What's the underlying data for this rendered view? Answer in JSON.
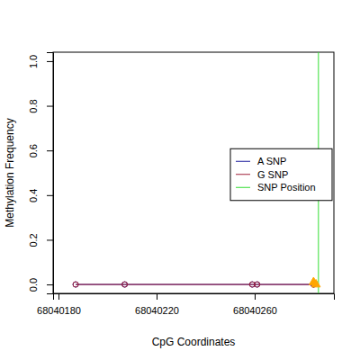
{
  "chart_data": {
    "type": "line",
    "x_label": "CpG Coordinates",
    "y_label": "Methylation Frequency",
    "xlim": [
      68040177.8,
      68040292.3
    ],
    "ylim": [
      -0.04,
      1.04
    ],
    "xticks": [
      68040180,
      68040220,
      68040260
    ],
    "yticks": [
      {
        "value": 0,
        "label": "0.0"
      },
      {
        "value": 0.2,
        "label": "0.2"
      },
      {
        "value": 0.4,
        "label": "0.4"
      },
      {
        "value": 0.6,
        "label": "0.6"
      },
      {
        "value": 0.8,
        "label": "0.8"
      },
      {
        "value": 1.0,
        "label": "1.0"
      }
    ],
    "series": [
      {
        "name": "A SNP",
        "color": "#1c1c9c",
        "marker": "circle",
        "line_style": "solid",
        "x": [
          68040187,
          68040207,
          68040259,
          68040261,
          68040284
        ],
        "values": [
          0,
          0,
          0,
          0,
          0
        ]
      },
      {
        "name": "G SNP",
        "color": "#a0203a",
        "marker": "circle",
        "line_style": "solid",
        "x": [
          68040187,
          68040207,
          68040259,
          68040261,
          68040284
        ],
        "values": [
          0,
          0,
          0,
          0,
          0
        ]
      },
      {
        "color": "#ffa500",
        "marker": "triangle",
        "type": "scatter",
        "x": [
          68040284,
          68040285
        ],
        "values": [
          0.01,
          0
        ]
      }
    ],
    "vline": {
      "name": "SNP Position",
      "color": "#33dd33",
      "x": 68040286
    },
    "legend": "right"
  }
}
